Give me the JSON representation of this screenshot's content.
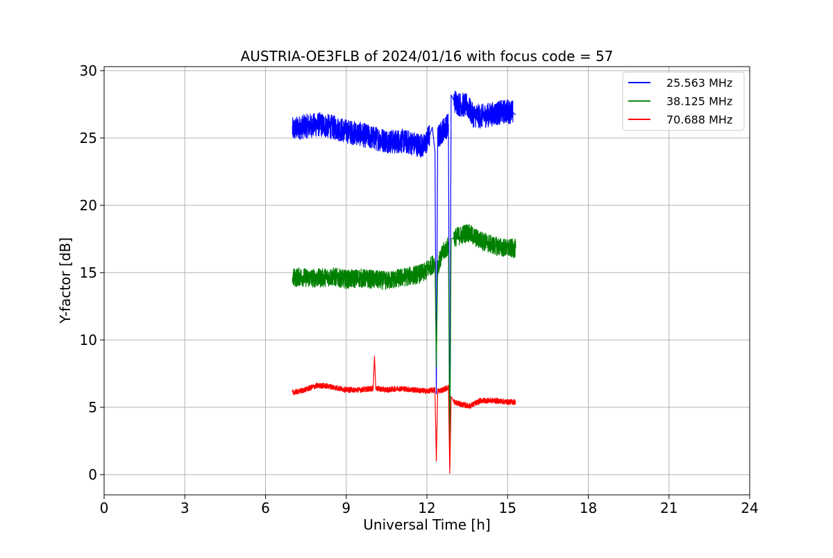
{
  "chart_data": {
    "type": "line",
    "title": "AUSTRIA-OE3FLB of 2024/01/16 with focus code = 57",
    "xlabel": "Universal Time [h]",
    "ylabel": "Y-factor [dB]",
    "xlim": [
      0,
      24
    ],
    "ylim": [
      -1.5,
      30.3
    ],
    "xticks": [
      0,
      3,
      6,
      9,
      12,
      15,
      18,
      21,
      24
    ],
    "yticks": [
      0,
      5,
      10,
      15,
      20,
      25,
      30
    ],
    "grid": true,
    "legend_position": "top-right",
    "series": [
      {
        "name": "25.563 MHz",
        "color": "#0000ff",
        "x": [
          7.0,
          7.3,
          7.6,
          8.0,
          8.5,
          9.0,
          9.5,
          10.0,
          10.5,
          10.8,
          11.0,
          11.5,
          11.9,
          12.1,
          12.2,
          12.3,
          12.35,
          12.4,
          12.6,
          12.8,
          12.85,
          12.9,
          13.0,
          13.2,
          13.5,
          13.7,
          14.0,
          14.5,
          15.0,
          15.2,
          15.3
        ],
        "y": [
          25.6,
          25.8,
          25.9,
          26.0,
          25.8,
          25.5,
          25.3,
          25.0,
          24.8,
          24.7,
          24.8,
          24.6,
          24.4,
          25.2,
          25.8,
          24.0,
          6.0,
          25.0,
          25.6,
          26.0,
          0.5,
          28.2,
          27.8,
          27.5,
          27.4,
          26.7,
          26.6,
          26.8,
          27.0,
          26.9,
          26.7
        ],
        "noise": 0.9
      },
      {
        "name": "38.125 MHz",
        "color": "#008000",
        "x": [
          7.0,
          7.3,
          7.6,
          8.0,
          8.5,
          9.0,
          9.5,
          10.0,
          10.5,
          11.0,
          11.5,
          11.9,
          12.1,
          12.3,
          12.35,
          12.4,
          12.6,
          12.8,
          12.85,
          12.9,
          13.0,
          13.3,
          13.5,
          13.8,
          14.0,
          14.5,
          15.0,
          15.3
        ],
        "y": [
          14.6,
          14.7,
          14.6,
          14.6,
          14.7,
          14.5,
          14.6,
          14.5,
          14.4,
          14.6,
          14.8,
          15.0,
          15.4,
          15.8,
          8.0,
          15.5,
          16.5,
          17.0,
          1.0,
          17.5,
          17.6,
          17.8,
          18.0,
          17.6,
          17.4,
          17.0,
          16.8,
          16.8
        ],
        "noise": 0.7
      },
      {
        "name": "70.688 MHz",
        "color": "#ff0000",
        "x": [
          7.0,
          7.3,
          7.6,
          7.9,
          8.2,
          8.5,
          9.0,
          9.5,
          10.0,
          10.05,
          10.1,
          10.5,
          11.0,
          11.5,
          12.0,
          12.3,
          12.35,
          12.4,
          12.6,
          12.8,
          12.85,
          12.9,
          13.0,
          13.3,
          13.6,
          14.0,
          14.5,
          15.0,
          15.3
        ],
        "y": [
          6.1,
          6.2,
          6.4,
          6.6,
          6.6,
          6.5,
          6.3,
          6.3,
          6.4,
          8.8,
          6.4,
          6.3,
          6.4,
          6.3,
          6.2,
          6.3,
          1.0,
          6.2,
          6.3,
          6.5,
          0.1,
          5.8,
          5.4,
          5.2,
          5.1,
          5.5,
          5.5,
          5.4,
          5.4
        ],
        "noise": 0.2
      }
    ]
  }
}
